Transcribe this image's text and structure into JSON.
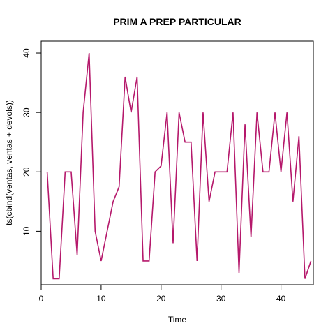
{
  "chart_data": {
    "type": "line",
    "title": "PRIM A PREP PARTICULAR",
    "xlabel": "Time",
    "ylabel": "ts(cbind(ventas, ventas + devols))",
    "xlim": [
      0,
      45.4
    ],
    "ylim": [
      1,
      42
    ],
    "xticks": [
      0,
      10,
      20,
      30,
      40
    ],
    "yticks": [
      10,
      20,
      30,
      40
    ],
    "grid": false,
    "line_color": "#b5186b",
    "series": [
      {
        "x": [
          1,
          2,
          3,
          4,
          5,
          6,
          7,
          8,
          9,
          10,
          11,
          12,
          13,
          14,
          15,
          16,
          17,
          18,
          19,
          20,
          21,
          22,
          23,
          24,
          25,
          26,
          27,
          28,
          29,
          30,
          31,
          32,
          33,
          34,
          35,
          36,
          37,
          38,
          39,
          40,
          41,
          42,
          43,
          44,
          45
        ],
        "values": [
          20,
          2,
          2,
          20,
          20,
          6,
          30,
          40,
          10,
          5,
          10,
          15,
          17.5,
          36,
          30,
          36,
          5,
          5,
          20,
          21,
          30,
          8,
          30,
          25,
          25,
          5,
          30,
          15,
          20,
          20,
          20,
          30,
          3,
          28,
          9,
          30,
          20,
          20,
          30,
          20,
          30,
          15,
          26,
          2,
          5
        ]
      }
    ]
  }
}
